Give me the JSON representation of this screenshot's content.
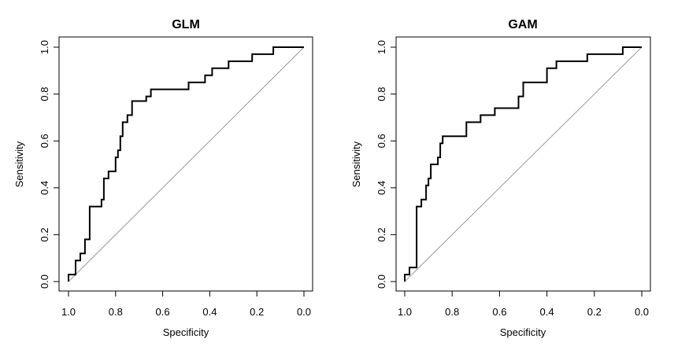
{
  "colors": {
    "roc_line": "#000000",
    "diagonal": "#999999",
    "frame": "#000000"
  },
  "chart_data": [
    {
      "type": "line",
      "title": "GLM",
      "xlabel": "Specificity",
      "ylabel": "Sensitivity",
      "x_reversed": true,
      "xlim": [
        1.0,
        0.0
      ],
      "ylim": [
        0.0,
        1.0
      ],
      "xticks": [
        "1.0",
        "0.8",
        "0.6",
        "0.4",
        "0.2",
        "0.0"
      ],
      "yticks": [
        "0.0",
        "0.2",
        "0.4",
        "0.6",
        "0.8",
        "1.0"
      ],
      "reference_line": {
        "from": [
          1.0,
          0.0
        ],
        "to": [
          0.0,
          1.0
        ]
      },
      "series": [
        {
          "x": [
            1.0,
            1.0,
            0.97,
            0.97,
            0.95,
            0.95,
            0.93,
            0.93,
            0.91,
            0.91,
            0.86,
            0.86,
            0.85,
            0.85,
            0.83,
            0.83,
            0.8,
            0.8,
            0.79,
            0.79,
            0.78,
            0.78,
            0.77,
            0.77,
            0.75,
            0.75,
            0.73,
            0.73,
            0.67,
            0.67,
            0.65,
            0.65,
            0.53,
            0.53,
            0.49,
            0.49,
            0.42,
            0.42,
            0.39,
            0.39,
            0.32,
            0.32,
            0.22,
            0.22,
            0.13,
            0.13,
            0.0
          ],
          "y": [
            0.0,
            0.03,
            0.03,
            0.09,
            0.09,
            0.12,
            0.12,
            0.18,
            0.18,
            0.32,
            0.32,
            0.35,
            0.35,
            0.44,
            0.44,
            0.47,
            0.47,
            0.53,
            0.53,
            0.56,
            0.56,
            0.62,
            0.62,
            0.68,
            0.68,
            0.71,
            0.71,
            0.77,
            0.77,
            0.79,
            0.79,
            0.82,
            0.82,
            0.82,
            0.82,
            0.85,
            0.85,
            0.88,
            0.88,
            0.91,
            0.91,
            0.94,
            0.94,
            0.97,
            0.97,
            1.0,
            1.0
          ]
        }
      ]
    },
    {
      "type": "line",
      "title": "GAM",
      "xlabel": "Specificity",
      "ylabel": "Sensitivity",
      "x_reversed": true,
      "xlim": [
        1.0,
        0.0
      ],
      "ylim": [
        0.0,
        1.0
      ],
      "xticks": [
        "1.0",
        "0.8",
        "0.6",
        "0.4",
        "0.2",
        "0.0"
      ],
      "yticks": [
        "0.0",
        "0.2",
        "0.4",
        "0.6",
        "0.8",
        "1.0"
      ],
      "reference_line": {
        "from": [
          1.0,
          0.0
        ],
        "to": [
          0.0,
          1.0
        ]
      },
      "series": [
        {
          "x": [
            1.0,
            1.0,
            0.98,
            0.98,
            0.95,
            0.95,
            0.93,
            0.93,
            0.91,
            0.91,
            0.9,
            0.9,
            0.89,
            0.89,
            0.86,
            0.86,
            0.85,
            0.85,
            0.84,
            0.84,
            0.83,
            0.83,
            0.74,
            0.74,
            0.68,
            0.68,
            0.62,
            0.62,
            0.52,
            0.52,
            0.5,
            0.5,
            0.4,
            0.4,
            0.36,
            0.36,
            0.23,
            0.23,
            0.08,
            0.08,
            0.0
          ],
          "y": [
            0.0,
            0.03,
            0.03,
            0.06,
            0.06,
            0.32,
            0.32,
            0.35,
            0.35,
            0.41,
            0.41,
            0.44,
            0.44,
            0.5,
            0.5,
            0.53,
            0.53,
            0.59,
            0.59,
            0.62,
            0.62,
            0.62,
            0.62,
            0.68,
            0.68,
            0.71,
            0.71,
            0.74,
            0.74,
            0.79,
            0.79,
            0.85,
            0.85,
            0.91,
            0.91,
            0.94,
            0.94,
            0.97,
            0.97,
            1.0,
            1.0
          ]
        }
      ]
    }
  ]
}
